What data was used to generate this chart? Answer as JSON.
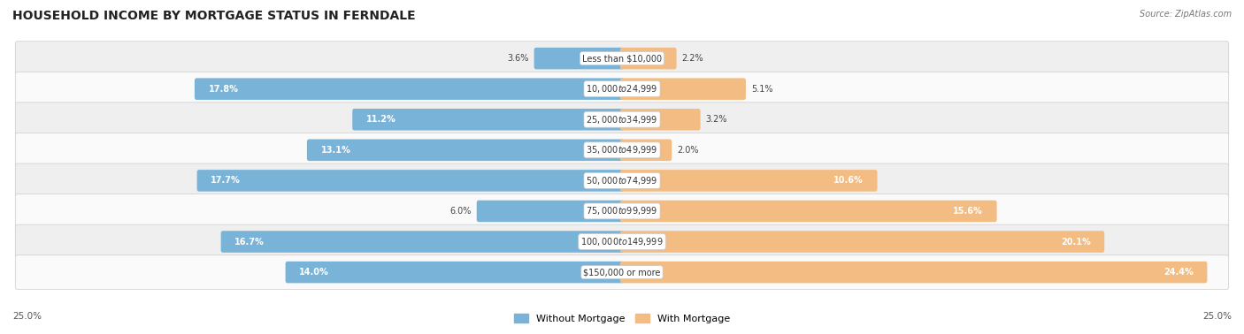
{
  "title": "HOUSEHOLD INCOME BY MORTGAGE STATUS IN FERNDALE",
  "source": "Source: ZipAtlas.com",
  "categories": [
    "Less than $10,000",
    "$10,000 to $24,999",
    "$25,000 to $34,999",
    "$35,000 to $49,999",
    "$50,000 to $74,999",
    "$75,000 to $99,999",
    "$100,000 to $149,999",
    "$150,000 or more"
  ],
  "without_mortgage": [
    3.6,
    17.8,
    11.2,
    13.1,
    17.7,
    6.0,
    16.7,
    14.0
  ],
  "with_mortgage": [
    2.2,
    5.1,
    3.2,
    2.0,
    10.6,
    15.6,
    20.1,
    24.4
  ],
  "color_without": "#7ab3d8",
  "color_with": "#f2bc82",
  "bg_odd": "#efefef",
  "bg_even": "#fafafa",
  "axis_max": 25.0,
  "legend_labels": [
    "Without Mortgage",
    "With Mortgage"
  ],
  "axis_label_left": "25.0%",
  "axis_label_right": "25.0%",
  "title_fontsize": 10,
  "source_fontsize": 7,
  "label_fontsize": 7,
  "value_fontsize": 7
}
